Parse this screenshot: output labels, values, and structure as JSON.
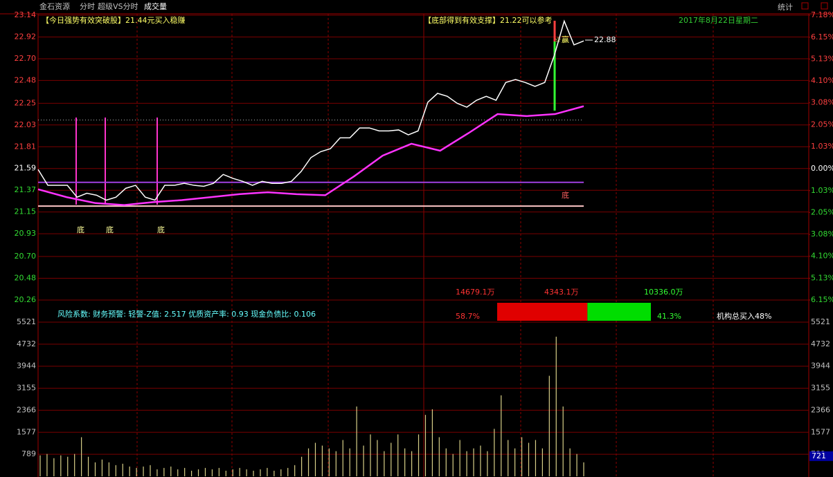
{
  "header": {
    "stock": "金石资源",
    "mode": "分时",
    "indicator": "超级VS分时",
    "sub": "成交量",
    "stats": "统计"
  },
  "annotations": {
    "signal_left": "【今日强势有效突破股】21.44元买入稳赚",
    "signal_mid": "【底部得到有效支撑】21.22可以参考",
    "date": "2017年8月22日星期二",
    "last_price": 22.88,
    "star": "☆赢",
    "bottom_marks": [
      "底",
      "底",
      "底",
      "底"
    ]
  },
  "info": "风险系数: 财务预警: 轻警-Z值: 2.517 优质资产率: 0.93 现金负债比: 0.106",
  "fund_flow": {
    "total": "14679.1万",
    "sell": "4343.1万",
    "buy": "10336.0万",
    "red_pct": 58.7,
    "red_label": "58.7%",
    "green_pct": 41.3,
    "green_label": "41.3%",
    "institution": "机构总买入48%"
  },
  "chart_data": [
    {
      "type": "line",
      "ylim": [
        20.26,
        23.14
      ],
      "yticks": [
        23.14,
        22.92,
        {
          "value": 22.7,
          "label": "22.70"
        },
        22.48,
        22.25,
        22.03,
        21.81,
        21.59,
        21.37,
        21.15,
        20.93,
        {
          "value": 20.7,
          "label": "20.70"
        },
        20.48,
        20.26
      ],
      "y2lim": [
        -6.15,
        7.18
      ],
      "y2ticks": [
        {
          "value": 7.18,
          "label": "7.18%"
        },
        {
          "value": 6.15,
          "label": "6.15%"
        },
        {
          "value": 5.13,
          "label": "5.13%"
        },
        {
          "value": 4.1,
          "label": "4.10%"
        },
        {
          "value": 3.08,
          "label": "3.08%"
        },
        {
          "value": 2.05,
          "label": "2.05%"
        },
        {
          "value": 1.03,
          "label": "1.03%"
        },
        {
          "value": 0,
          "label": "0.00%"
        },
        {
          "value": -1.03,
          "label": "1.03%"
        },
        {
          "value": -2.05,
          "label": "2.05%"
        },
        {
          "value": -3.08,
          "label": "3.08%"
        },
        {
          "value": -4.1,
          "label": "4.10%"
        },
        {
          "value": -5.13,
          "label": "5.13%"
        },
        {
          "value": -6.15,
          "label": "6.15%"
        }
      ],
      "grid": true,
      "reference_lines": [
        {
          "value": 22.08,
          "color": "#bbbbbb",
          "style": "dotted"
        },
        {
          "value": 21.45,
          "color": "#a040e0",
          "style": "solid"
        },
        {
          "value": 21.21,
          "color": "#ffc8c8",
          "style": "solid"
        }
      ],
      "series": [
        {
          "color": "#ffffff",
          "values": [
            21.58,
            21.42,
            21.42,
            21.42,
            21.3,
            21.34,
            21.32,
            21.27,
            21.3,
            21.39,
            21.42,
            21.3,
            21.27,
            21.42,
            21.42,
            21.44,
            21.42,
            21.41,
            21.44,
            21.53,
            21.49,
            21.46,
            21.42,
            21.46,
            21.44,
            21.44,
            21.46,
            21.56,
            21.7,
            21.76,
            21.79,
            21.9,
            21.9,
            22.0,
            22.0,
            21.97,
            21.97,
            21.98,
            21.93,
            21.97,
            22.26,
            22.35,
            22.32,
            22.25,
            22.21,
            22.28,
            22.32,
            22.28,
            22.46,
            22.49,
            22.46,
            22.42,
            22.46,
            22.74,
            23.08,
            22.84,
            22.88
          ]
        },
        {
          "color": "#ff33ff",
          "values": [
            21.38,
            21.3,
            21.24,
            21.22,
            21.25,
            21.27,
            21.3,
            21.33,
            21.35,
            21.33,
            21.32,
            21.51,
            21.72,
            21.84,
            21.77,
            21.95,
            22.14,
            22.12,
            22.14,
            22.22
          ]
        }
      ]
    },
    {
      "type": "bar",
      "ylim": [
        0,
        5521
      ],
      "yticks": [
        5521,
        4732,
        3944,
        3155,
        2366,
        1577,
        789
      ],
      "color": "#d8d088",
      "grid": true,
      "latest": 721,
      "values": [
        750,
        800,
        650,
        750,
        700,
        800,
        1400,
        700,
        500,
        600,
        500,
        400,
        450,
        350,
        300,
        350,
        400,
        250,
        300,
        350,
        250,
        300,
        200,
        250,
        300,
        250,
        300,
        200,
        250,
        300,
        250,
        200,
        250,
        300,
        200,
        250,
        300,
        400,
        700,
        1000,
        1200,
        1100,
        1000,
        900,
        1300,
        1000,
        2500,
        1100,
        1500,
        1300,
        900,
        1200,
        1500,
        1000,
        900,
        1500,
        2200,
        2400,
        1400,
        1000,
        800,
        1300,
        900,
        1000,
        1100,
        900,
        1700,
        2900,
        1300,
        1000,
        1400,
        1200,
        1300,
        1000,
        3600,
        5000,
        2500,
        1000,
        800,
        500
      ]
    }
  ]
}
